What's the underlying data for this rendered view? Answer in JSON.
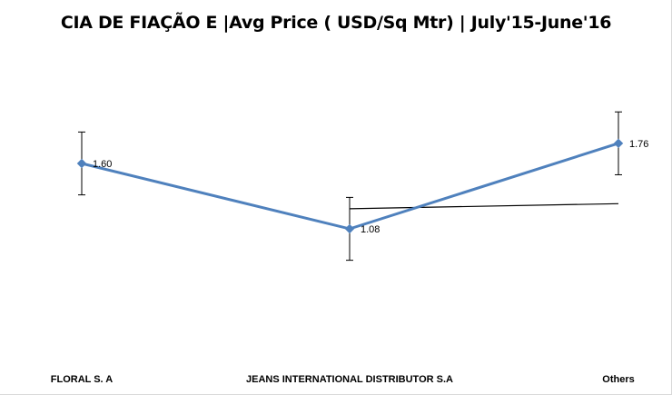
{
  "chart_data": {
    "type": "line",
    "title": "CIA DE FIAÇÃO E |Avg Price ( USD/Sq Mtr) | July'15-June'16",
    "categories": [
      "FLORAL S. A",
      "JEANS INTERNATIONAL DISTRIBUTOR S.A",
      "Others"
    ],
    "series": [
      {
        "values": [
          1.6,
          1.08,
          1.76
        ],
        "data_labels": [
          "1.60",
          "1.08",
          "1.76"
        ],
        "error_bars": 0.25,
        "color": "#4f81bd",
        "marker": "diamond"
      }
    ],
    "trendline": {
      "type": "linear",
      "color": "#000000",
      "start_category": "JEANS INTERNATIONAL DISTRIBUTOR S.A",
      "end_category": "Others",
      "values": [
        1.24,
        1.28
      ]
    },
    "ylim": [
      0.5,
      2.2
    ],
    "xlabel": "",
    "ylabel": "",
    "grid": false,
    "legend": "none",
    "axes_visible": false
  }
}
